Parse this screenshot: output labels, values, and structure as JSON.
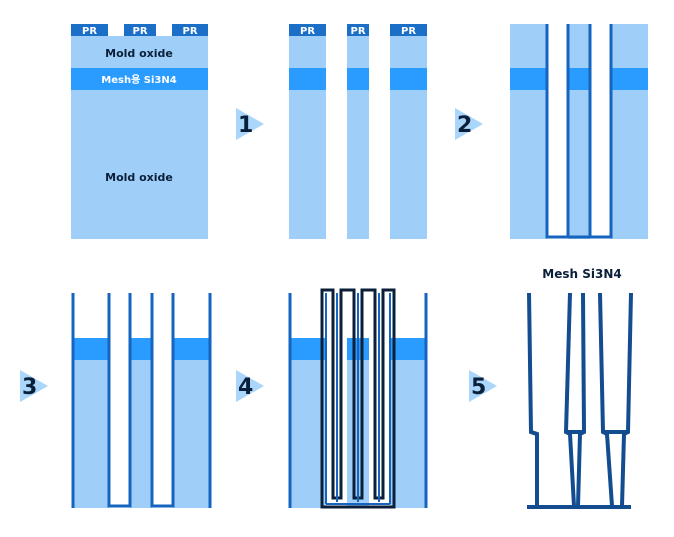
{
  "colors": {
    "oxide": "#9fcff8",
    "mesh": "#2b9cff",
    "pr": "#1b6fc6",
    "line": "#1565c0",
    "dark_line": "#0b1f3a",
    "final": "#134c8f",
    "arrow": "#a9d6fa"
  },
  "step1": {
    "pr_label": "PR",
    "mold_top_label": "Mold oxide",
    "mesh_label": "Mesh용 Si3N4",
    "mold_bottom_label": "Mold oxide"
  },
  "step2": {
    "pr_label": "PR"
  },
  "step6": {
    "title": "Mesh Si3N4"
  },
  "steps": [
    "1",
    "2",
    "3",
    "4",
    "5"
  ]
}
